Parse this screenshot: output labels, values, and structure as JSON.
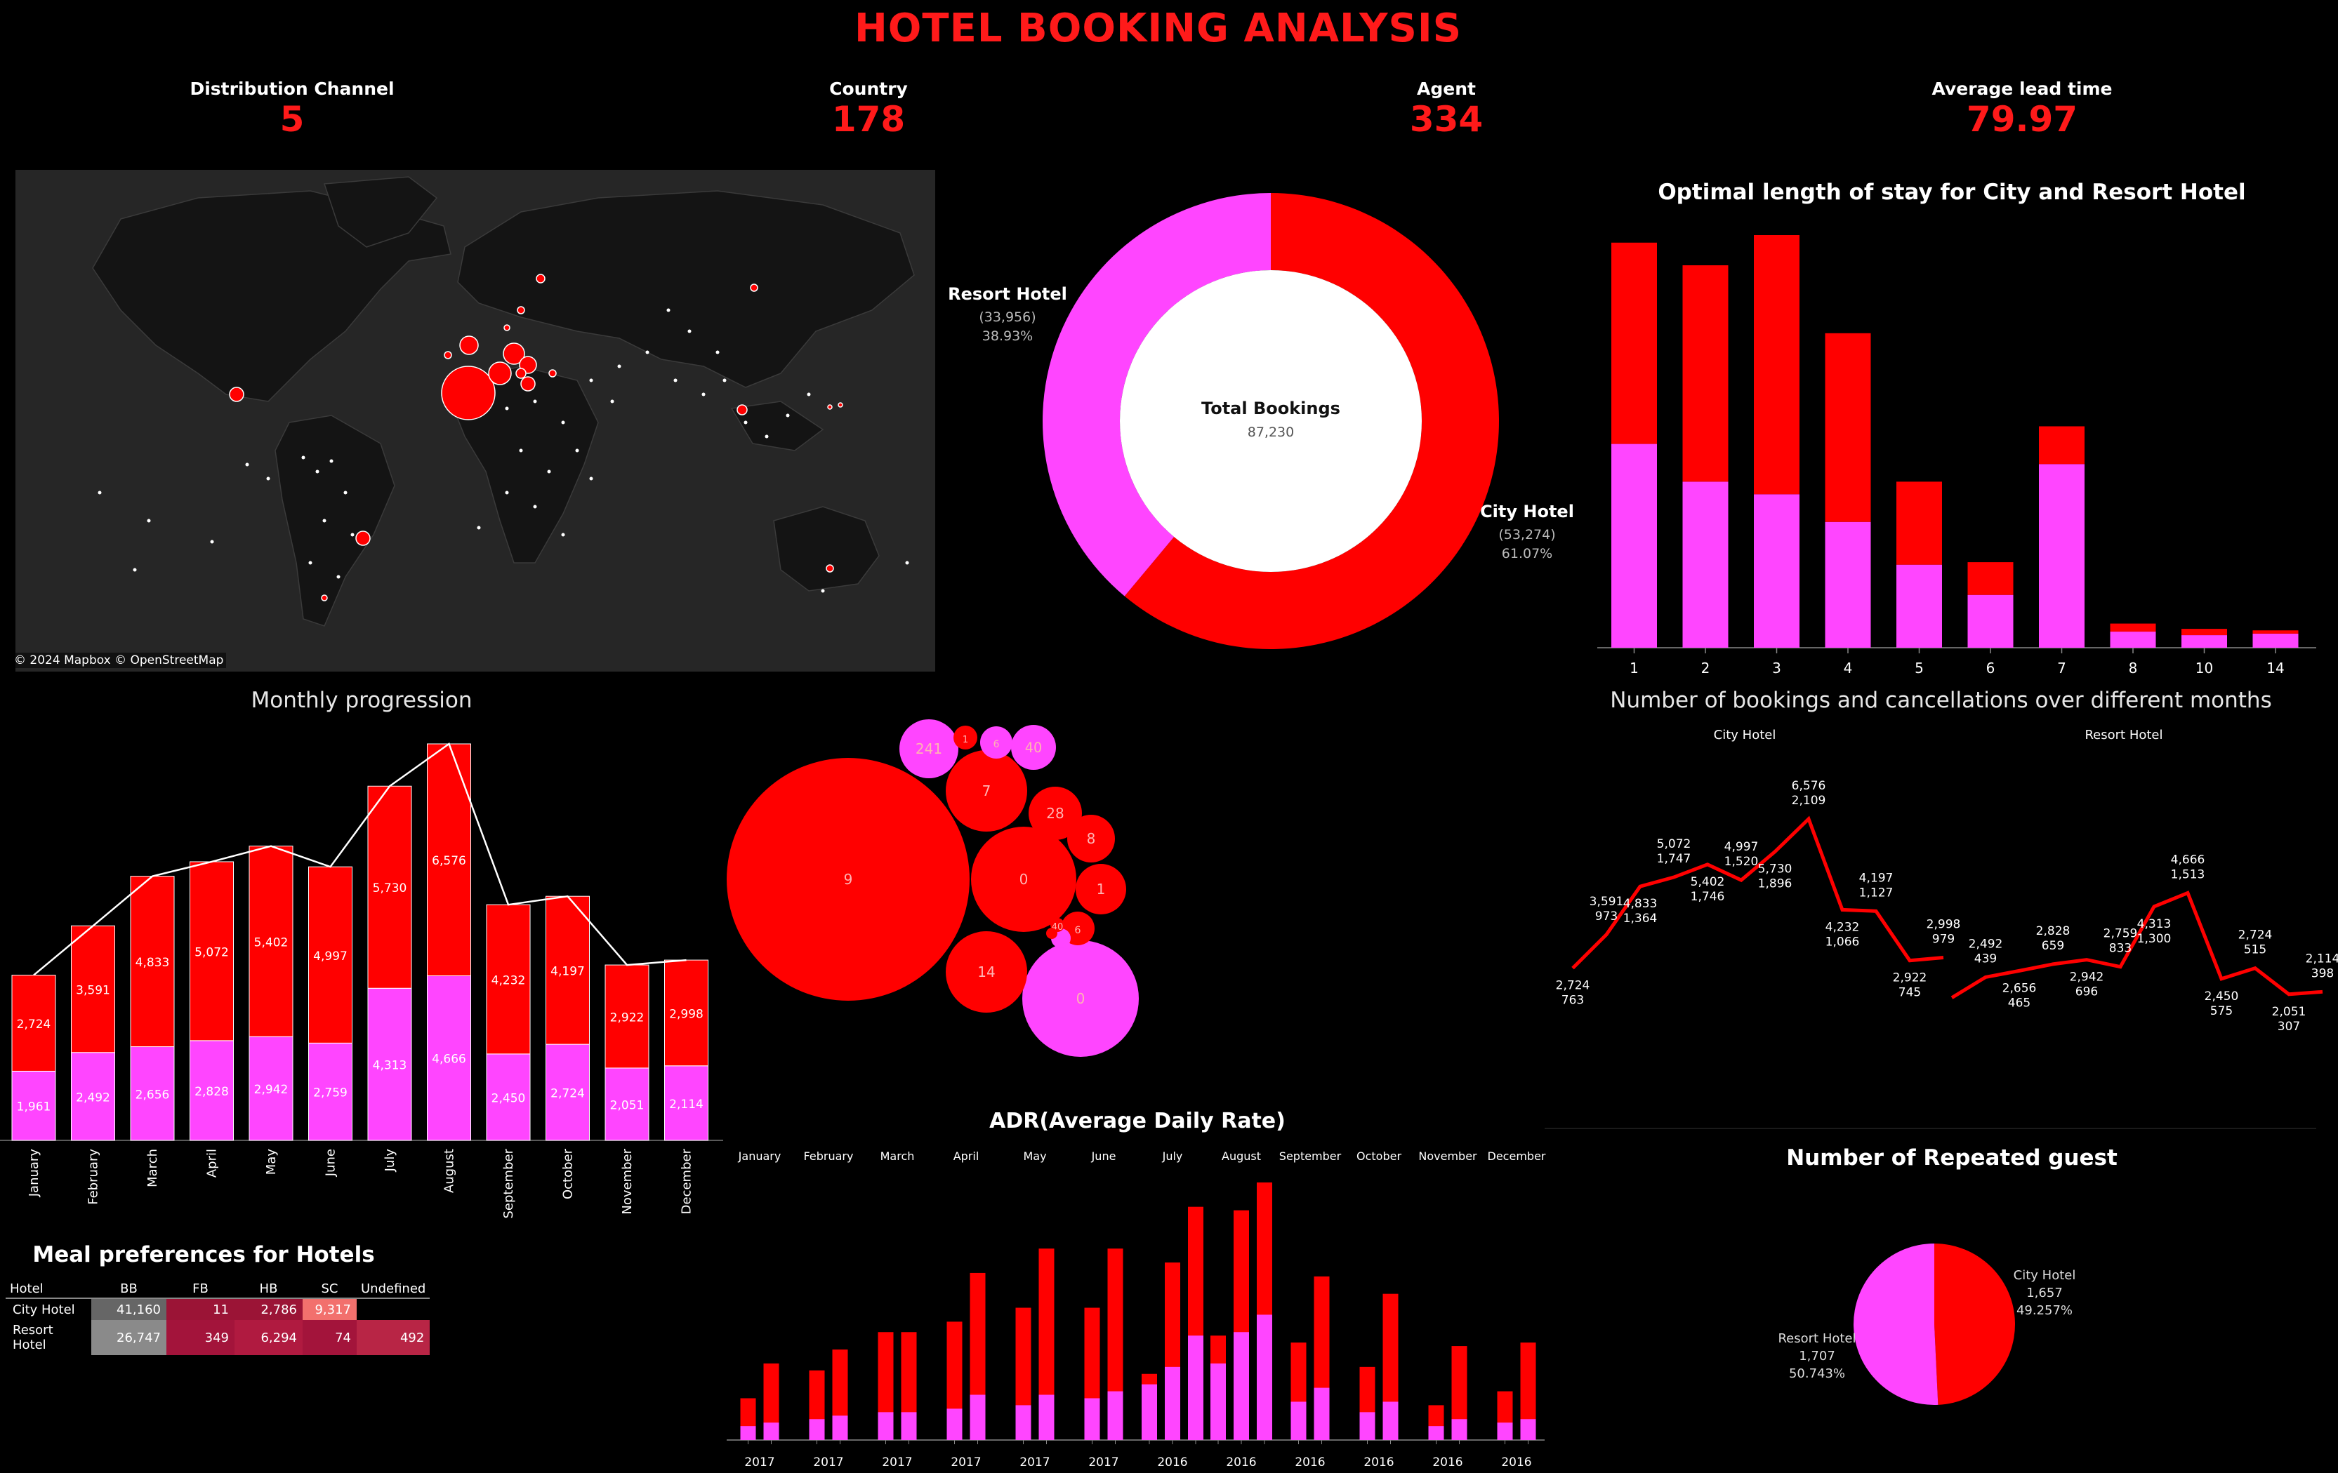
{
  "title": "HOTEL BOOKING ANALYSIS",
  "colors": {
    "city": "#ff0000",
    "resort": "#ff45ff",
    "title": "#ff1a1a",
    "background": "#000000"
  },
  "kpis": [
    {
      "label": "Distribution Channel",
      "value": "5"
    },
    {
      "label": "Country",
      "value": "178"
    },
    {
      "label": "Agent",
      "value": "334"
    },
    {
      "label": "Average lead time",
      "value": "79.97"
    }
  ],
  "map": {
    "credit": "© 2024 Mapbox © OpenStreetMap"
  },
  "chart_data": [
    {
      "id": "donut",
      "type": "pie",
      "center_label": "Total Bookings",
      "center_value": "87,230",
      "slices": [
        {
          "name": "Resort Hotel",
          "value": 33956,
          "value_label": "(33,956)",
          "pct_label": "38.93%",
          "color": "#ff45ff"
        },
        {
          "name": "City Hotel",
          "value": 53274,
          "value_label": "(53,274)",
          "pct_label": "61.07%",
          "color": "#ff0000"
        }
      ]
    },
    {
      "id": "stay",
      "type": "bar",
      "title": "Optimal length of stay for City and Resort Hotel",
      "categories": [
        "1",
        "2",
        "3",
        "4",
        "5",
        "6",
        "7",
        "8",
        "10",
        "14"
      ],
      "series": [
        {
          "name": "Resort Hotel",
          "values": [
            8100,
            6600,
            6100,
            5000,
            3300,
            2100,
            7300,
            640,
            500,
            560
          ]
        },
        {
          "name": "City Hotel",
          "values": [
            8000,
            8600,
            10300,
            7500,
            3300,
            1300,
            1500,
            320,
            250,
            130
          ]
        }
      ],
      "ylim": [
        0,
        16400
      ]
    },
    {
      "id": "monthly",
      "type": "bar",
      "title": "Monthly progression",
      "categories": [
        "January",
        "February",
        "March",
        "April",
        "May",
        "June",
        "July",
        "August",
        "September",
        "October",
        "November",
        "December"
      ],
      "series": [
        {
          "name": "Resort Hotel",
          "values": [
            1961,
            2492,
            2656,
            2828,
            2942,
            2759,
            4313,
            4666,
            2450,
            2724,
            2051,
            2114
          ],
          "labels": [
            "1,961",
            "2,492",
            "2,656",
            "2,828",
            "2,942",
            "2,759",
            "4,313",
            "4,666",
            "2,450",
            "2,724",
            "2,051",
            "2,114"
          ]
        },
        {
          "name": "City Hotel",
          "values": [
            2724,
            3591,
            4833,
            5072,
            5402,
            4997,
            5730,
            6576,
            4232,
            4197,
            2922,
            2998
          ],
          "labels": [
            "2,724",
            "3,591",
            "4,833",
            "5,072",
            "5,402",
            "4,997",
            "5,730",
            "6,576",
            "4,232",
            "4,197",
            "2,922",
            "2,998"
          ]
        }
      ],
      "ylim": [
        0,
        11242
      ]
    },
    {
      "id": "bubbles",
      "type": "scatter",
      "bubbles": [
        {
          "label": "9",
          "value": 100,
          "color": "#ff0000"
        },
        {
          "label": "0",
          "value": 19,
          "color": "#ff0000"
        },
        {
          "label": "0",
          "value": 24,
          "color": "#ff45ff"
        },
        {
          "label": "241",
          "value": 6.6,
          "color": "#ff45ff"
        },
        {
          "label": "7",
          "value": 12,
          "color": "#ff0000"
        },
        {
          "label": "14",
          "value": 11,
          "color": "#ff0000"
        },
        {
          "label": "28",
          "value": 4.8,
          "color": "#ff0000"
        },
        {
          "label": "8",
          "value": 4,
          "color": "#ff0000"
        },
        {
          "label": "1",
          "value": 4.5,
          "color": "#ff0000"
        },
        {
          "label": "40",
          "value": 3.6,
          "color": "#ff45ff"
        },
        {
          "label": "6",
          "value": 2.4,
          "color": "#ff45ff"
        },
        {
          "label": "1",
          "value": 1.4,
          "color": "#ff0000"
        },
        {
          "label": "6",
          "value": 1.2,
          "color": "#ff0000"
        },
        {
          "label": "",
          "value": 1.0,
          "color": "#ff45ff"
        },
        {
          "label": "40",
          "value": 0.5,
          "color": "#ff0000"
        },
        {
          "label": "",
          "value": 0.3,
          "color": "#ff0000"
        }
      ]
    },
    {
      "id": "cancellations",
      "type": "line",
      "title": "Number of bookings and cancellations over different months",
      "panels": [
        {
          "name": "City Hotel",
          "points": [
            {
              "bookings": "2,724",
              "cancellations": "763",
              "value": 2724
            },
            {
              "bookings": "3,591",
              "cancellations": "973",
              "value": 3591
            },
            {
              "bookings": "4,833",
              "cancellations": "1,364",
              "value": 4833
            },
            {
              "bookings": "5,072",
              "cancellations": "1,747",
              "value": 5072
            },
            {
              "bookings": "5,402",
              "cancellations": "1,746",
              "value": 5402
            },
            {
              "bookings": "4,997",
              "cancellations": "1,520",
              "value": 4997
            },
            {
              "bookings": "5,730",
              "cancellations": "1,896",
              "value": 5730
            },
            {
              "bookings": "6,576",
              "cancellations": "2,109",
              "value": 6576
            },
            {
              "bookings": "4,232",
              "cancellations": "1,066",
              "value": 4232
            },
            {
              "bookings": "4,197",
              "cancellations": "1,127",
              "value": 4197
            },
            {
              "bookings": "2,922",
              "cancellations": "745",
              "value": 2922
            },
            {
              "bookings": "2,998",
              "cancellations": "979",
              "value": 2998
            }
          ]
        },
        {
          "name": "Resort Hotel",
          "points": [
            {
              "bookings": "",
              "cancellations": "",
              "value": 1961
            },
            {
              "bookings": "2,492",
              "cancellations": "439",
              "value": 2492
            },
            {
              "bookings": "2,656",
              "cancellations": "465",
              "value": 2656
            },
            {
              "bookings": "2,828",
              "cancellations": "659",
              "value": 2828
            },
            {
              "bookings": "2,942",
              "cancellations": "696",
              "value": 2942
            },
            {
              "bookings": "2,759",
              "cancellations": "833",
              "value": 2759
            },
            {
              "bookings": "4,313",
              "cancellations": "1,300",
              "value": 4313
            },
            {
              "bookings": "4,666",
              "cancellations": "1,513",
              "value": 4666
            },
            {
              "bookings": "2,450",
              "cancellations": "575",
              "value": 2450
            },
            {
              "bookings": "2,724",
              "cancellations": "515",
              "value": 2724
            },
            {
              "bookings": "2,051",
              "cancellations": "307",
              "value": 2051
            },
            {
              "bookings": "2,114",
              "cancellations": "398",
              "value": 2114
            }
          ]
        }
      ]
    },
    {
      "id": "adr",
      "type": "bar",
      "title": "ADR(Average Daily Rate)",
      "months": [
        "January",
        "February",
        "March",
        "April",
        "May",
        "June",
        "July",
        "August",
        "September",
        "October",
        "November",
        "December"
      ],
      "groups": [
        {
          "year_label": "2017",
          "bars": [
            {
              "city": 60,
              "resort": 20
            },
            {
              "city": 110,
              "resort": 25
            }
          ]
        },
        {
          "year_label": "2017",
          "bars": [
            {
              "city": 100,
              "resort": 30
            },
            {
              "city": 130,
              "resort": 35
            }
          ]
        },
        {
          "year_label": "2017",
          "bars": [
            {
              "city": 155,
              "resort": 40
            },
            {
              "city": 155,
              "resort": 40
            }
          ]
        },
        {
          "year_label": "2017",
          "bars": [
            {
              "city": 170,
              "resort": 45
            },
            {
              "city": 240,
              "resort": 65
            }
          ]
        },
        {
          "year_label": "2017",
          "bars": [
            {
              "city": 190,
              "resort": 50
            },
            {
              "city": 275,
              "resort": 65
            }
          ]
        },
        {
          "year_label": "2017",
          "bars": [
            {
              "city": 190,
              "resort": 60
            },
            {
              "city": 275,
              "resort": 70
            }
          ]
        },
        {
          "year_label": "2016",
          "bars": [
            {
              "city": 95,
              "resort": 80
            },
            {
              "city": 255,
              "resort": 105
            },
            {
              "city": 335,
              "resort": 150
            }
          ]
        },
        {
          "year_label": "2016",
          "bars": [
            {
              "city": 150,
              "resort": 110
            },
            {
              "city": 330,
              "resort": 155
            },
            {
              "city": 370,
              "resort": 180
            }
          ]
        },
        {
          "year_label": "2016",
          "bars": [
            {
              "city": 140,
              "resort": 55
            },
            {
              "city": 235,
              "resort": 75
            }
          ]
        },
        {
          "year_label": "2016",
          "bars": [
            {
              "city": 105,
              "resort": 40
            },
            {
              "city": 210,
              "resort": 55
            }
          ]
        },
        {
          "year_label": "2016",
          "bars": [
            {
              "city": 50,
              "resort": 20
            },
            {
              "city": 135,
              "resort": 30
            }
          ]
        },
        {
          "year_label": "2016",
          "bars": [
            {
              "city": 70,
              "resort": 25
            },
            {
              "city": 140,
              "resort": 30
            }
          ]
        }
      ],
      "ylim": [
        0,
        375
      ]
    },
    {
      "id": "repeated",
      "type": "pie",
      "title": "Number of Repeated guest",
      "slices": [
        {
          "name": "City Hotel",
          "value": 1657,
          "value_label": "1,657",
          "pct_label": "49.257%",
          "color": "#ff0000"
        },
        {
          "name": "Resort Hotel",
          "value": 1707,
          "value_label": "1,707",
          "pct_label": "50.743%",
          "color": "#ff45ff"
        }
      ]
    }
  ],
  "meal": {
    "title": "Meal preferences for Hotels",
    "columns": [
      "Hotel",
      "BB",
      "FB",
      "HB",
      "SC",
      "Undefined"
    ],
    "rows": [
      {
        "hotel": "City Hotel",
        "cells": [
          "41,160",
          "11",
          "2,786",
          "9,317",
          ""
        ],
        "colors": [
          "#666666",
          "#9b1436",
          "#9b1436",
          "#f2706d",
          "#000000"
        ]
      },
      {
        "hotel": "Resort Hotel",
        "cells": [
          "26,747",
          "349",
          "6,294",
          "74",
          "492"
        ],
        "colors": [
          "#8a8a8a",
          "#a3143b",
          "#b01a40",
          "#a3143b",
          "#b82545"
        ]
      }
    ]
  }
}
